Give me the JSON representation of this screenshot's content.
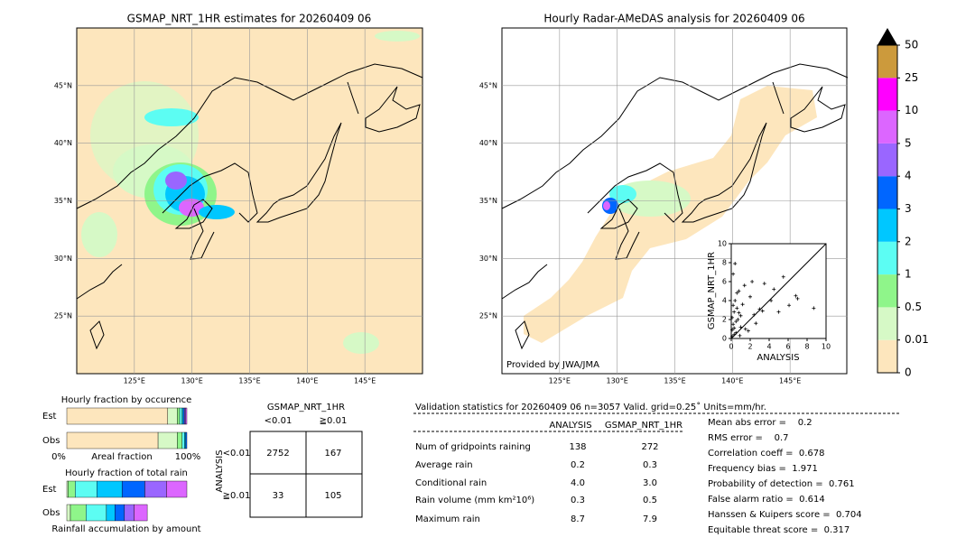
{
  "left_map": {
    "title": "GSMAP_NRT_1HR estimates for 20260409 06",
    "lon_range": [
      120,
      150
    ],
    "lat_range": [
      20,
      50
    ],
    "lon_ticks": [
      {
        "value": 125,
        "label": "125°E"
      },
      {
        "value": 130,
        "label": "130°E"
      },
      {
        "value": 135,
        "label": "135°E"
      },
      {
        "value": 140,
        "label": "140°E"
      },
      {
        "value": 145,
        "label": "145°E"
      }
    ],
    "lat_ticks": [
      {
        "value": 25,
        "label": "25°N"
      },
      {
        "value": 30,
        "label": "30°N"
      },
      {
        "value": 35,
        "label": "35°N"
      },
      {
        "value": 40,
        "label": "40°N"
      },
      {
        "value": 45,
        "label": "45°N"
      }
    ]
  },
  "right_map": {
    "title": "Hourly Radar-AMeDAS analysis for 20260409 06",
    "lon_range": [
      120,
      150
    ],
    "lat_range": [
      20,
      50
    ],
    "lon_ticks": [
      {
        "value": 125,
        "label": "125°E"
      },
      {
        "value": 130,
        "label": "130°E"
      },
      {
        "value": 135,
        "label": "135°E"
      },
      {
        "value": 140,
        "label": "140°E"
      },
      {
        "value": 145,
        "label": "145°E"
      }
    ],
    "lat_ticks": [
      {
        "value": 25,
        "label": "25°N"
      },
      {
        "value": 30,
        "label": "30°N"
      },
      {
        "value": 35,
        "label": "35°N"
      },
      {
        "value": 40,
        "label": "40°N"
      },
      {
        "value": 45,
        "label": "45°N"
      }
    ],
    "credit": "Provided by JWA/JMA"
  },
  "colorbar": {
    "ticks": [
      0,
      0.01,
      0.5,
      1,
      2,
      3,
      4,
      5,
      10,
      25,
      50
    ],
    "colors": [
      "#fde6bd",
      "#d6f9c6",
      "#8ff58a",
      "#5cfdf3",
      "#00c7ff",
      "#0066ff",
      "#9a66ff",
      "#dc66ff",
      "#ff00ff",
      "#cc9a3c"
    ],
    "extend_color": "#000000"
  },
  "scatter": {
    "type": "scatter",
    "xlabel": "ANALYSIS",
    "ylabel": "GSMAP_NRT_1HR",
    "xlim": [
      0,
      10
    ],
    "ylim": [
      0,
      10
    ],
    "xticks": [
      0,
      2,
      4,
      6,
      8,
      10
    ],
    "yticks": [
      0,
      2,
      4,
      6,
      8,
      10
    ],
    "x": [
      0.1,
      0.2,
      0.3,
      0.4,
      0.5,
      0.6,
      0.8,
      1.0,
      0.2,
      0.4,
      0.7,
      1.2,
      1.5,
      2.0,
      2.4,
      3.0,
      3.5,
      4.2,
      5.0,
      6.1,
      7.0,
      8.7,
      0.1,
      0.3,
      0.5,
      1.0,
      1.8,
      2.6,
      3.3,
      4.5,
      5.5,
      6.8,
      0.2,
      0.6,
      0.9,
      1.4,
      2.2,
      0.1,
      0.3,
      0.8
    ],
    "y": [
      0.2,
      1.5,
      2.8,
      4.0,
      0.6,
      3.2,
      5.0,
      1.2,
      6.8,
      7.9,
      2.0,
      3.6,
      1.0,
      4.4,
      2.5,
      3.1,
      5.8,
      4.0,
      2.8,
      3.5,
      4.2,
      3.2,
      0.9,
      0.4,
      1.8,
      2.4,
      0.8,
      1.6,
      2.9,
      5.2,
      6.5,
      4.5,
      3.5,
      4.8,
      0.3,
      5.6,
      6.0,
      2.2,
      1.1,
      2.7
    ]
  },
  "occurrence": {
    "title": "Hourly fraction by occurence",
    "rows": [
      "Est",
      "Obs"
    ],
    "axis_labels": [
      "0%",
      "Areal fraction",
      "100%"
    ],
    "colors": [
      "#fde6bd",
      "#d6f9c6",
      "#8ff58a",
      "#5cfdf3",
      "#00c7ff",
      "#0066ff",
      "#9a66ff",
      "#dc66ff"
    ],
    "values": [
      [
        84,
        8,
        2,
        2,
        1,
        1,
        1,
        1
      ],
      [
        76,
        16,
        4,
        2,
        1,
        1,
        0,
        0
      ]
    ]
  },
  "amount": {
    "title": "Hourly fraction of total rain",
    "rows": [
      "Est",
      "Obs"
    ],
    "caption": "Rainfall accumulation by amount",
    "colors": [
      "#d6f9c6",
      "#8ff58a",
      "#5cfdf3",
      "#00c7ff",
      "#0066ff",
      "#9a66ff",
      "#dc66ff"
    ],
    "values": [
      [
        1,
        6,
        18,
        21,
        19,
        18,
        17
      ],
      [
        3,
        13,
        17,
        7,
        8,
        8,
        11
      ]
    ]
  },
  "contingency": {
    "title": "GSMAP_NRT_1HR",
    "col_labels": [
      "<0.01",
      "≧0.01"
    ],
    "row_title": "ANALYSIS",
    "row_labels": [
      "<0.01",
      "≧0.01"
    ],
    "cells": [
      [
        2752,
        167
      ],
      [
        33,
        105
      ]
    ]
  },
  "validation": {
    "header": "Validation statistics for 20260409 06  n=3057 Valid. grid=0.25˚ Units=mm/hr.",
    "columns": [
      "ANALYSIS",
      "GSMAP_NRT_1HR"
    ],
    "rows": [
      {
        "label": "Num of gridpoints raining",
        "values": [
          "138",
          "272"
        ]
      },
      {
        "label": "Average rain",
        "values": [
          "0.2",
          "0.3"
        ]
      },
      {
        "label": "Conditional rain",
        "values": [
          "4.0",
          "3.0"
        ]
      },
      {
        "label": "Rain volume (mm km²10⁶)",
        "values": [
          "0.3",
          "0.5"
        ]
      },
      {
        "label": "Maximum rain",
        "values": [
          "8.7",
          "7.9"
        ]
      }
    ],
    "scores": [
      "Mean abs error =    0.2",
      "RMS error =    0.7",
      "Correlation coeff =  0.678",
      "Frequency bias =  1.971",
      "Probability of detection =  0.761",
      "False alarm ratio =  0.614",
      "Hanssen & Kuipers score =  0.704",
      "Equitable threat score =  0.317"
    ]
  }
}
